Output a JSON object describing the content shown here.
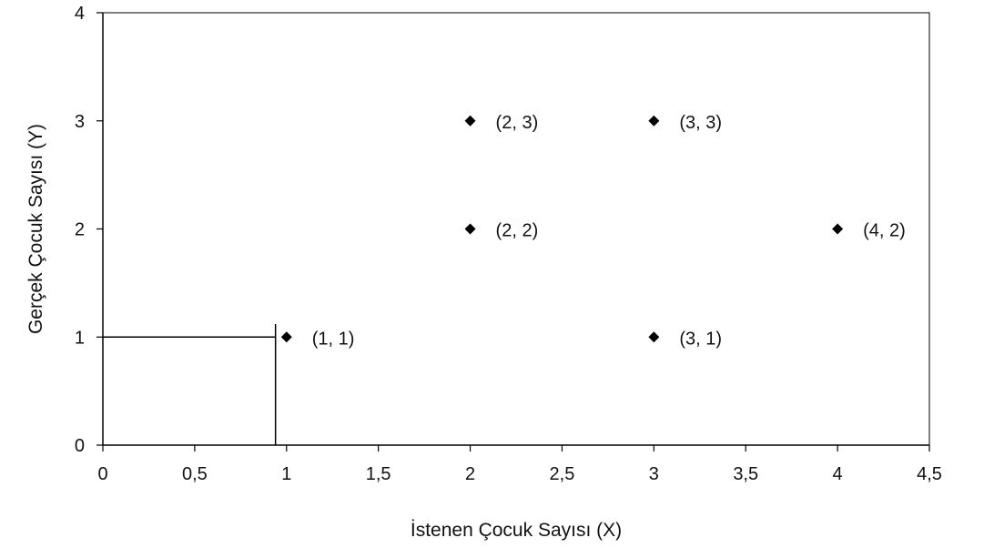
{
  "chart_data": {
    "type": "scatter",
    "xlabel": "İstenen Çocuk Sayısı (X)",
    "ylabel": "Gerçek Çocuk Sayısı (Y)",
    "xlim": [
      0,
      4.5
    ],
    "ylim": [
      0,
      4
    ],
    "x_ticks": [
      {
        "value": 0,
        "label": "0"
      },
      {
        "value": 0.5,
        "label": "0,5"
      },
      {
        "value": 1,
        "label": "1"
      },
      {
        "value": 1.5,
        "label": "1,5"
      },
      {
        "value": 2,
        "label": "2"
      },
      {
        "value": 2.5,
        "label": "2,5"
      },
      {
        "value": 3,
        "label": "3"
      },
      {
        "value": 3.5,
        "label": "3,5"
      },
      {
        "value": 4,
        "label": "4"
      },
      {
        "value": 4.5,
        "label": "4,5"
      }
    ],
    "y_ticks": [
      {
        "value": 0,
        "label": "0"
      },
      {
        "value": 1,
        "label": "1"
      },
      {
        "value": 2,
        "label": "2"
      },
      {
        "value": 3,
        "label": "3"
      },
      {
        "value": 4,
        "label": "4"
      }
    ],
    "points": [
      {
        "x": 1,
        "y": 1,
        "label": "(1, 1)"
      },
      {
        "x": 2,
        "y": 2,
        "label": "(2, 2)"
      },
      {
        "x": 2,
        "y": 3,
        "label": "(2, 3)"
      },
      {
        "x": 3,
        "y": 3,
        "label": "(3, 3)"
      },
      {
        "x": 3,
        "y": 1,
        "label": "(3, 1)"
      },
      {
        "x": 4,
        "y": 2,
        "label": "(4, 2)"
      }
    ],
    "marker": "diamond",
    "marker_color": "#000000",
    "grid": false,
    "annotation_lines": [
      {
        "x1": 0,
        "y1": 1,
        "x2": 0.94,
        "y2": 1
      },
      {
        "x1": 0.94,
        "y1": 0,
        "x2": 0.94,
        "y2": 1.12
      }
    ]
  }
}
